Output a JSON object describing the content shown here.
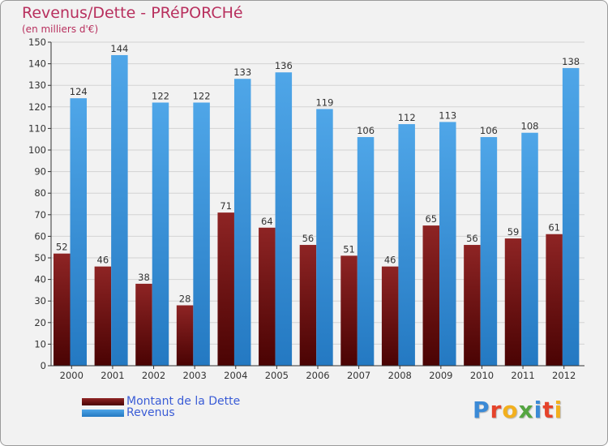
{
  "title": "Revenus/Dette - PRéPORCHé",
  "subtitle": "(en milliers d'€)",
  "chart_data": {
    "type": "bar",
    "categories": [
      "2000",
      "2001",
      "2002",
      "2003",
      "2004",
      "2005",
      "2006",
      "2007",
      "2008",
      "2009",
      "2010",
      "2011",
      "2012"
    ],
    "series": [
      {
        "name": "Montant de la Dette",
        "color": "#7a1a1a",
        "values": [
          52,
          46,
          38,
          28,
          71,
          64,
          56,
          51,
          46,
          65,
          56,
          59,
          61
        ]
      },
      {
        "name": "Revenus",
        "color": "#3d95dc",
        "values": [
          124,
          144,
          122,
          122,
          133,
          136,
          119,
          106,
          112,
          113,
          106,
          108,
          138
        ]
      }
    ],
    "ylim": [
      0,
      150
    ],
    "ytick_step": 10,
    "grid": true
  },
  "logo": {
    "text": "Proxiti",
    "letter_colors": [
      "#3b8ad6",
      "#e5432b",
      "#f2b01e",
      "#54a541",
      "#3b8ad6",
      "#e5432b",
      "#f2b01e"
    ]
  }
}
